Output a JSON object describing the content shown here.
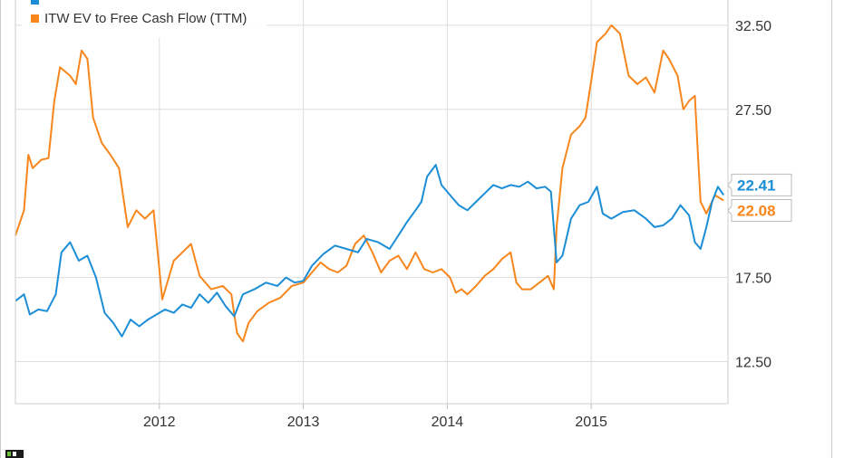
{
  "chart_data": {
    "type": "line",
    "title": "",
    "xlabel": "",
    "ylabel": "",
    "x_ticks": [
      "2012",
      "2013",
      "2014",
      "2015"
    ],
    "y_ticks": [
      "12.50",
      "17.50",
      "27.50",
      "32.50"
    ],
    "ylim": [
      10,
      34
    ],
    "xlim": [
      2011.0,
      2015.95
    ],
    "grid": true,
    "legend_position": "top-left",
    "series": [
      {
        "name": "ITW EV to Free Cash Flow (TTM)",
        "color": "#f7861c",
        "end_label": "22.08",
        "points": [
          [
            2011.0,
            20.0
          ],
          [
            2011.06,
            21.5
          ],
          [
            2011.09,
            24.8
          ],
          [
            2011.12,
            24.0
          ],
          [
            2011.18,
            24.5
          ],
          [
            2011.23,
            24.6
          ],
          [
            2011.27,
            28.0
          ],
          [
            2011.31,
            30.0
          ],
          [
            2011.38,
            29.5
          ],
          [
            2011.42,
            29.0
          ],
          [
            2011.46,
            31.0
          ],
          [
            2011.5,
            30.5
          ],
          [
            2011.54,
            27.0
          ],
          [
            2011.6,
            25.5
          ],
          [
            2011.66,
            24.8
          ],
          [
            2011.72,
            24.0
          ],
          [
            2011.78,
            20.5
          ],
          [
            2011.84,
            21.5
          ],
          [
            2011.9,
            21.0
          ],
          [
            2011.96,
            21.5
          ],
          [
            2012.02,
            16.2
          ],
          [
            2012.1,
            18.5
          ],
          [
            2012.16,
            19.0
          ],
          [
            2012.22,
            19.5
          ],
          [
            2012.28,
            17.6
          ],
          [
            2012.36,
            16.8
          ],
          [
            2012.44,
            17.0
          ],
          [
            2012.5,
            16.5
          ],
          [
            2012.54,
            14.2
          ],
          [
            2012.58,
            13.7
          ],
          [
            2012.62,
            14.8
          ],
          [
            2012.68,
            15.5
          ],
          [
            2012.76,
            16.0
          ],
          [
            2012.84,
            16.3
          ],
          [
            2012.92,
            17.0
          ],
          [
            2013.0,
            17.2
          ],
          [
            2013.06,
            17.8
          ],
          [
            2013.12,
            18.4
          ],
          [
            2013.18,
            18.0
          ],
          [
            2013.24,
            17.8
          ],
          [
            2013.3,
            18.2
          ],
          [
            2013.36,
            19.5
          ],
          [
            2013.42,
            20.0
          ],
          [
            2013.48,
            19.0
          ],
          [
            2013.54,
            17.8
          ],
          [
            2013.6,
            18.5
          ],
          [
            2013.66,
            18.8
          ],
          [
            2013.72,
            18.0
          ],
          [
            2013.78,
            19.0
          ],
          [
            2013.84,
            18.0
          ],
          [
            2013.9,
            17.8
          ],
          [
            2013.96,
            18.0
          ],
          [
            2014.02,
            17.5
          ],
          [
            2014.06,
            16.6
          ],
          [
            2014.1,
            16.8
          ],
          [
            2014.14,
            16.5
          ],
          [
            2014.2,
            17.0
          ],
          [
            2014.26,
            17.6
          ],
          [
            2014.32,
            18.0
          ],
          [
            2014.38,
            18.6
          ],
          [
            2014.44,
            19.0
          ],
          [
            2014.48,
            17.2
          ],
          [
            2014.52,
            16.8
          ],
          [
            2014.58,
            16.8
          ],
          [
            2014.64,
            17.2
          ],
          [
            2014.7,
            17.6
          ],
          [
            2014.74,
            16.8
          ],
          [
            2014.76,
            20.5
          ],
          [
            2014.8,
            24.0
          ],
          [
            2014.86,
            26.0
          ],
          [
            2014.92,
            26.5
          ],
          [
            2014.96,
            27.0
          ],
          [
            2015.0,
            29.2
          ],
          [
            2015.04,
            31.5
          ],
          [
            2015.1,
            32.0
          ],
          [
            2015.14,
            32.5
          ],
          [
            2015.2,
            32.0
          ],
          [
            2015.26,
            29.5
          ],
          [
            2015.32,
            29.0
          ],
          [
            2015.38,
            29.4
          ],
          [
            2015.44,
            28.5
          ],
          [
            2015.5,
            31.0
          ],
          [
            2015.54,
            30.5
          ],
          [
            2015.6,
            29.5
          ],
          [
            2015.64,
            27.5
          ],
          [
            2015.68,
            28.0
          ],
          [
            2015.72,
            28.3
          ],
          [
            2015.74,
            25.0
          ],
          [
            2015.76,
            22.0
          ],
          [
            2015.8,
            21.3
          ],
          [
            2015.86,
            22.4
          ],
          [
            2015.92,
            22.08
          ]
        ]
      },
      {
        "name": "",
        "color": "#1c8ed6",
        "end_label": "22.41",
        "points": [
          [
            2011.0,
            16.1
          ],
          [
            2011.06,
            16.5
          ],
          [
            2011.1,
            15.3
          ],
          [
            2011.16,
            15.6
          ],
          [
            2011.22,
            15.5
          ],
          [
            2011.28,
            16.5
          ],
          [
            2011.32,
            19.0
          ],
          [
            2011.38,
            19.6
          ],
          [
            2011.44,
            18.5
          ],
          [
            2011.5,
            18.8
          ],
          [
            2011.56,
            17.5
          ],
          [
            2011.62,
            15.4
          ],
          [
            2011.68,
            14.8
          ],
          [
            2011.74,
            14.0
          ],
          [
            2011.8,
            15.0
          ],
          [
            2011.86,
            14.6
          ],
          [
            2011.92,
            15.0
          ],
          [
            2011.98,
            15.3
          ],
          [
            2012.04,
            15.6
          ],
          [
            2012.1,
            15.4
          ],
          [
            2012.16,
            15.9
          ],
          [
            2012.22,
            15.7
          ],
          [
            2012.28,
            16.5
          ],
          [
            2012.34,
            16.0
          ],
          [
            2012.4,
            16.6
          ],
          [
            2012.46,
            15.8
          ],
          [
            2012.52,
            15.2
          ],
          [
            2012.58,
            16.5
          ],
          [
            2012.66,
            16.8
          ],
          [
            2012.74,
            17.2
          ],
          [
            2012.82,
            17.0
          ],
          [
            2012.88,
            17.5
          ],
          [
            2012.94,
            17.2
          ],
          [
            2013.0,
            17.3
          ],
          [
            2013.06,
            18.2
          ],
          [
            2013.14,
            18.9
          ],
          [
            2013.22,
            19.4
          ],
          [
            2013.3,
            19.2
          ],
          [
            2013.38,
            19.0
          ],
          [
            2013.44,
            19.8
          ],
          [
            2013.52,
            19.6
          ],
          [
            2013.6,
            19.2
          ],
          [
            2013.66,
            20.0
          ],
          [
            2013.72,
            20.8
          ],
          [
            2013.78,
            21.5
          ],
          [
            2013.82,
            22.0
          ],
          [
            2013.86,
            23.5
          ],
          [
            2013.92,
            24.2
          ],
          [
            2013.96,
            23.0
          ],
          [
            2014.02,
            22.4
          ],
          [
            2014.08,
            21.8
          ],
          [
            2014.14,
            21.5
          ],
          [
            2014.2,
            22.0
          ],
          [
            2014.26,
            22.5
          ],
          [
            2014.32,
            23.0
          ],
          [
            2014.38,
            22.8
          ],
          [
            2014.44,
            23.0
          ],
          [
            2014.5,
            22.9
          ],
          [
            2014.56,
            23.2
          ],
          [
            2014.62,
            22.8
          ],
          [
            2014.68,
            22.9
          ],
          [
            2014.72,
            22.6
          ],
          [
            2014.76,
            18.4
          ],
          [
            2014.8,
            18.8
          ],
          [
            2014.86,
            21.0
          ],
          [
            2014.92,
            21.8
          ],
          [
            2014.98,
            22.0
          ],
          [
            2015.04,
            22.9
          ],
          [
            2015.08,
            21.3
          ],
          [
            2015.14,
            21.0
          ],
          [
            2015.22,
            21.4
          ],
          [
            2015.3,
            21.5
          ],
          [
            2015.38,
            21.0
          ],
          [
            2015.44,
            20.5
          ],
          [
            2015.5,
            20.6
          ],
          [
            2015.56,
            21.0
          ],
          [
            2015.62,
            21.8
          ],
          [
            2015.68,
            21.2
          ],
          [
            2015.72,
            19.6
          ],
          [
            2015.76,
            19.2
          ],
          [
            2015.8,
            20.5
          ],
          [
            2015.84,
            22.0
          ],
          [
            2015.88,
            22.9
          ],
          [
            2015.92,
            22.41
          ]
        ]
      }
    ]
  }
}
